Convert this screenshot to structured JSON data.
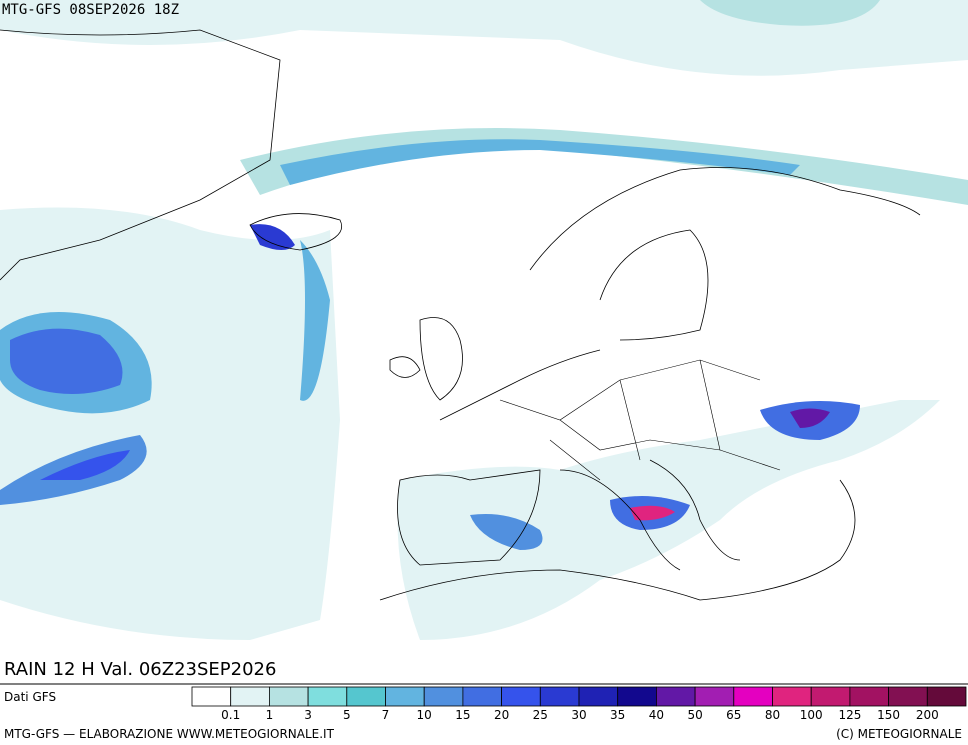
{
  "header": {
    "title": "MTG-GFS 08SEP2026 18Z"
  },
  "map": {
    "field_title": "RAIN 12 H Val. 06Z23SEP2026"
  },
  "legend": {
    "source": "Dati GFS",
    "bounds": [
      0.1,
      1,
      3,
      5,
      7,
      10,
      15,
      20,
      25,
      30,
      35,
      40,
      50,
      65,
      80,
      100,
      125,
      150,
      200
    ],
    "colors": [
      "#ffffff",
      "#e2f3f4",
      "#b6e2e2",
      "#7fdede",
      "#55c6cf",
      "#62b4e0",
      "#5190df",
      "#416ee2",
      "#3553ec",
      "#2a3ad2",
      "#1f22b4",
      "#12088e",
      "#6218a6",
      "#a21eb2",
      "#e400c0",
      "#e0247f",
      "#c21a70",
      "#a21262",
      "#821052",
      "#640a3a"
    ]
  },
  "footer": {
    "left": "MTG-GFS — ELABORAZIONE WWW.METEOGIORNALE.IT",
    "right": "(C) METEOGIORNALE"
  }
}
